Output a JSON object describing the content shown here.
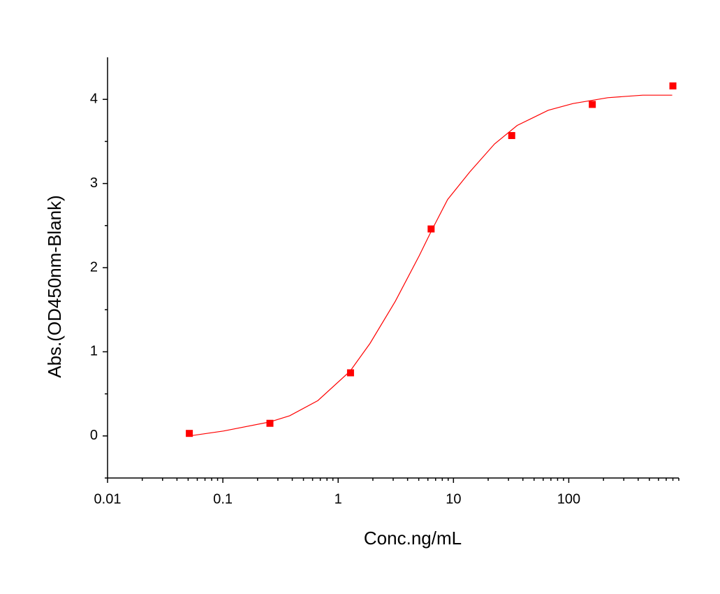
{
  "chart_data": {
    "type": "scatter",
    "x_label": "Conc.ng/mL",
    "y_label": "Abs.(OD450nm-Blank)",
    "xscale": "log",
    "xlim": [
      0.01,
      900
    ],
    "xticks": [
      0.01,
      0.1,
      1,
      10,
      100
    ],
    "ylim": [
      -0.5,
      4.5
    ],
    "yticks": [
      0,
      1,
      2,
      3,
      4
    ],
    "series": [
      {
        "type": "scatter",
        "marker": "square",
        "color": "#ff0000",
        "x": [
          0.0512,
          0.256,
          1.28,
          6.4,
          32,
          160,
          800
        ],
        "values": [
          0.03,
          0.15,
          0.75,
          2.46,
          3.57,
          3.94,
          4.16
        ]
      },
      {
        "type": "line",
        "color": "#ff0000",
        "x": [
          0.0512,
          0.101,
          0.255,
          0.38,
          0.667,
          1.27,
          1.89,
          3.13,
          5.04,
          6.4,
          8.9,
          13.9,
          22.7,
          35.7,
          66.3,
          108.7,
          218,
          438,
          789
        ],
        "values": [
          0.0,
          0.058,
          0.166,
          0.24,
          0.42,
          0.77,
          1.1,
          1.6,
          2.14,
          2.43,
          2.81,
          3.14,
          3.47,
          3.69,
          3.87,
          3.95,
          4.02,
          4.05,
          4.05
        ]
      }
    ]
  }
}
